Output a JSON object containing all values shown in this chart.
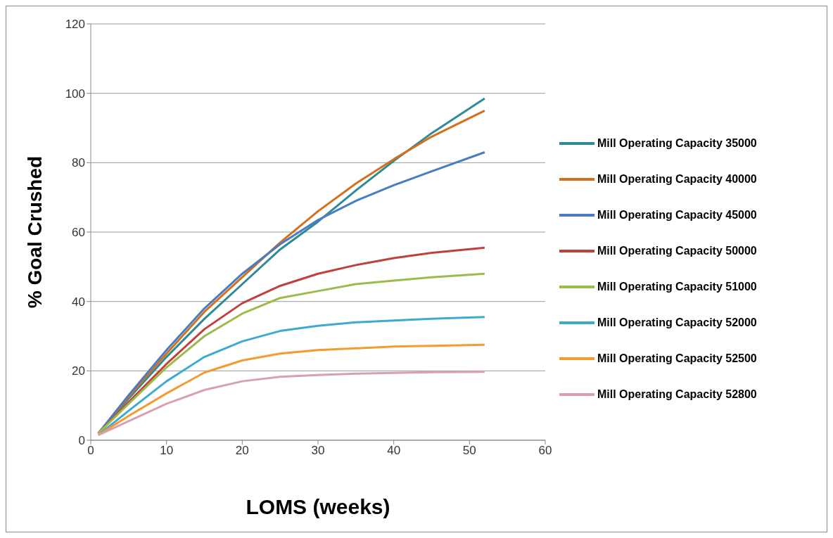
{
  "chart_data": {
    "type": "line",
    "xlabel": "LOMS (weeks)",
    "ylabel": "% Goal Crushed",
    "x": [
      1,
      5,
      10,
      15,
      20,
      25,
      30,
      35,
      40,
      45,
      52
    ],
    "xlim": [
      0,
      60
    ],
    "xticks": [
      0,
      10,
      20,
      30,
      40,
      50,
      60
    ],
    "ylim": [
      0,
      120
    ],
    "yticks": [
      0,
      20,
      40,
      60,
      80,
      100,
      120
    ],
    "grid": "y",
    "legend": "right",
    "marker": "none",
    "line_style": "solid",
    "series": [
      {
        "name": "Mill Operating Capacity 35000",
        "color": "#2e8b96",
        "values": [
          2,
          12,
          24,
          35,
          45,
          55,
          63,
          72,
          80.5,
          88.5,
          98.5
        ]
      },
      {
        "name": "Mill Operating Capacity 40000",
        "color": "#d2701e",
        "values": [
          2,
          12.5,
          25,
          37,
          47,
          57,
          66,
          74,
          81,
          87.5,
          95
        ]
      },
      {
        "name": "Mill Operating Capacity 45000",
        "color": "#4a7cc4",
        "values": [
          2,
          13,
          26,
          38,
          48,
          56.5,
          63.5,
          69,
          73.5,
          77.5,
          83
        ]
      },
      {
        "name": "Mill Operating Capacity 50000",
        "color": "#c0403c",
        "values": [
          2,
          11,
          22,
          32,
          39.5,
          44.5,
          48,
          50.5,
          52.5,
          54,
          55.5
        ]
      },
      {
        "name": "Mill Operating Capacity 51000",
        "color": "#9bbb4a",
        "values": [
          2,
          10.5,
          21,
          30,
          36.5,
          41,
          43,
          45,
          46,
          47,
          48
        ]
      },
      {
        "name": "Mill Operating Capacity 52000",
        "color": "#3eaad0",
        "values": [
          1.5,
          8.5,
          17,
          24,
          28.5,
          31.5,
          33,
          34,
          34.5,
          35,
          35.5
        ]
      },
      {
        "name": "Mill Operating Capacity 52500",
        "color": "#f59a2e",
        "values": [
          1.5,
          7,
          13.5,
          19.5,
          23,
          25,
          26,
          26.5,
          27,
          27.2,
          27.5
        ]
      },
      {
        "name": "Mill Operating Capacity 52800",
        "color": "#d9a0b4",
        "values": [
          1.5,
          5.5,
          10.5,
          14.5,
          17,
          18.3,
          18.8,
          19.2,
          19.4,
          19.6,
          19.7
        ]
      }
    ]
  }
}
